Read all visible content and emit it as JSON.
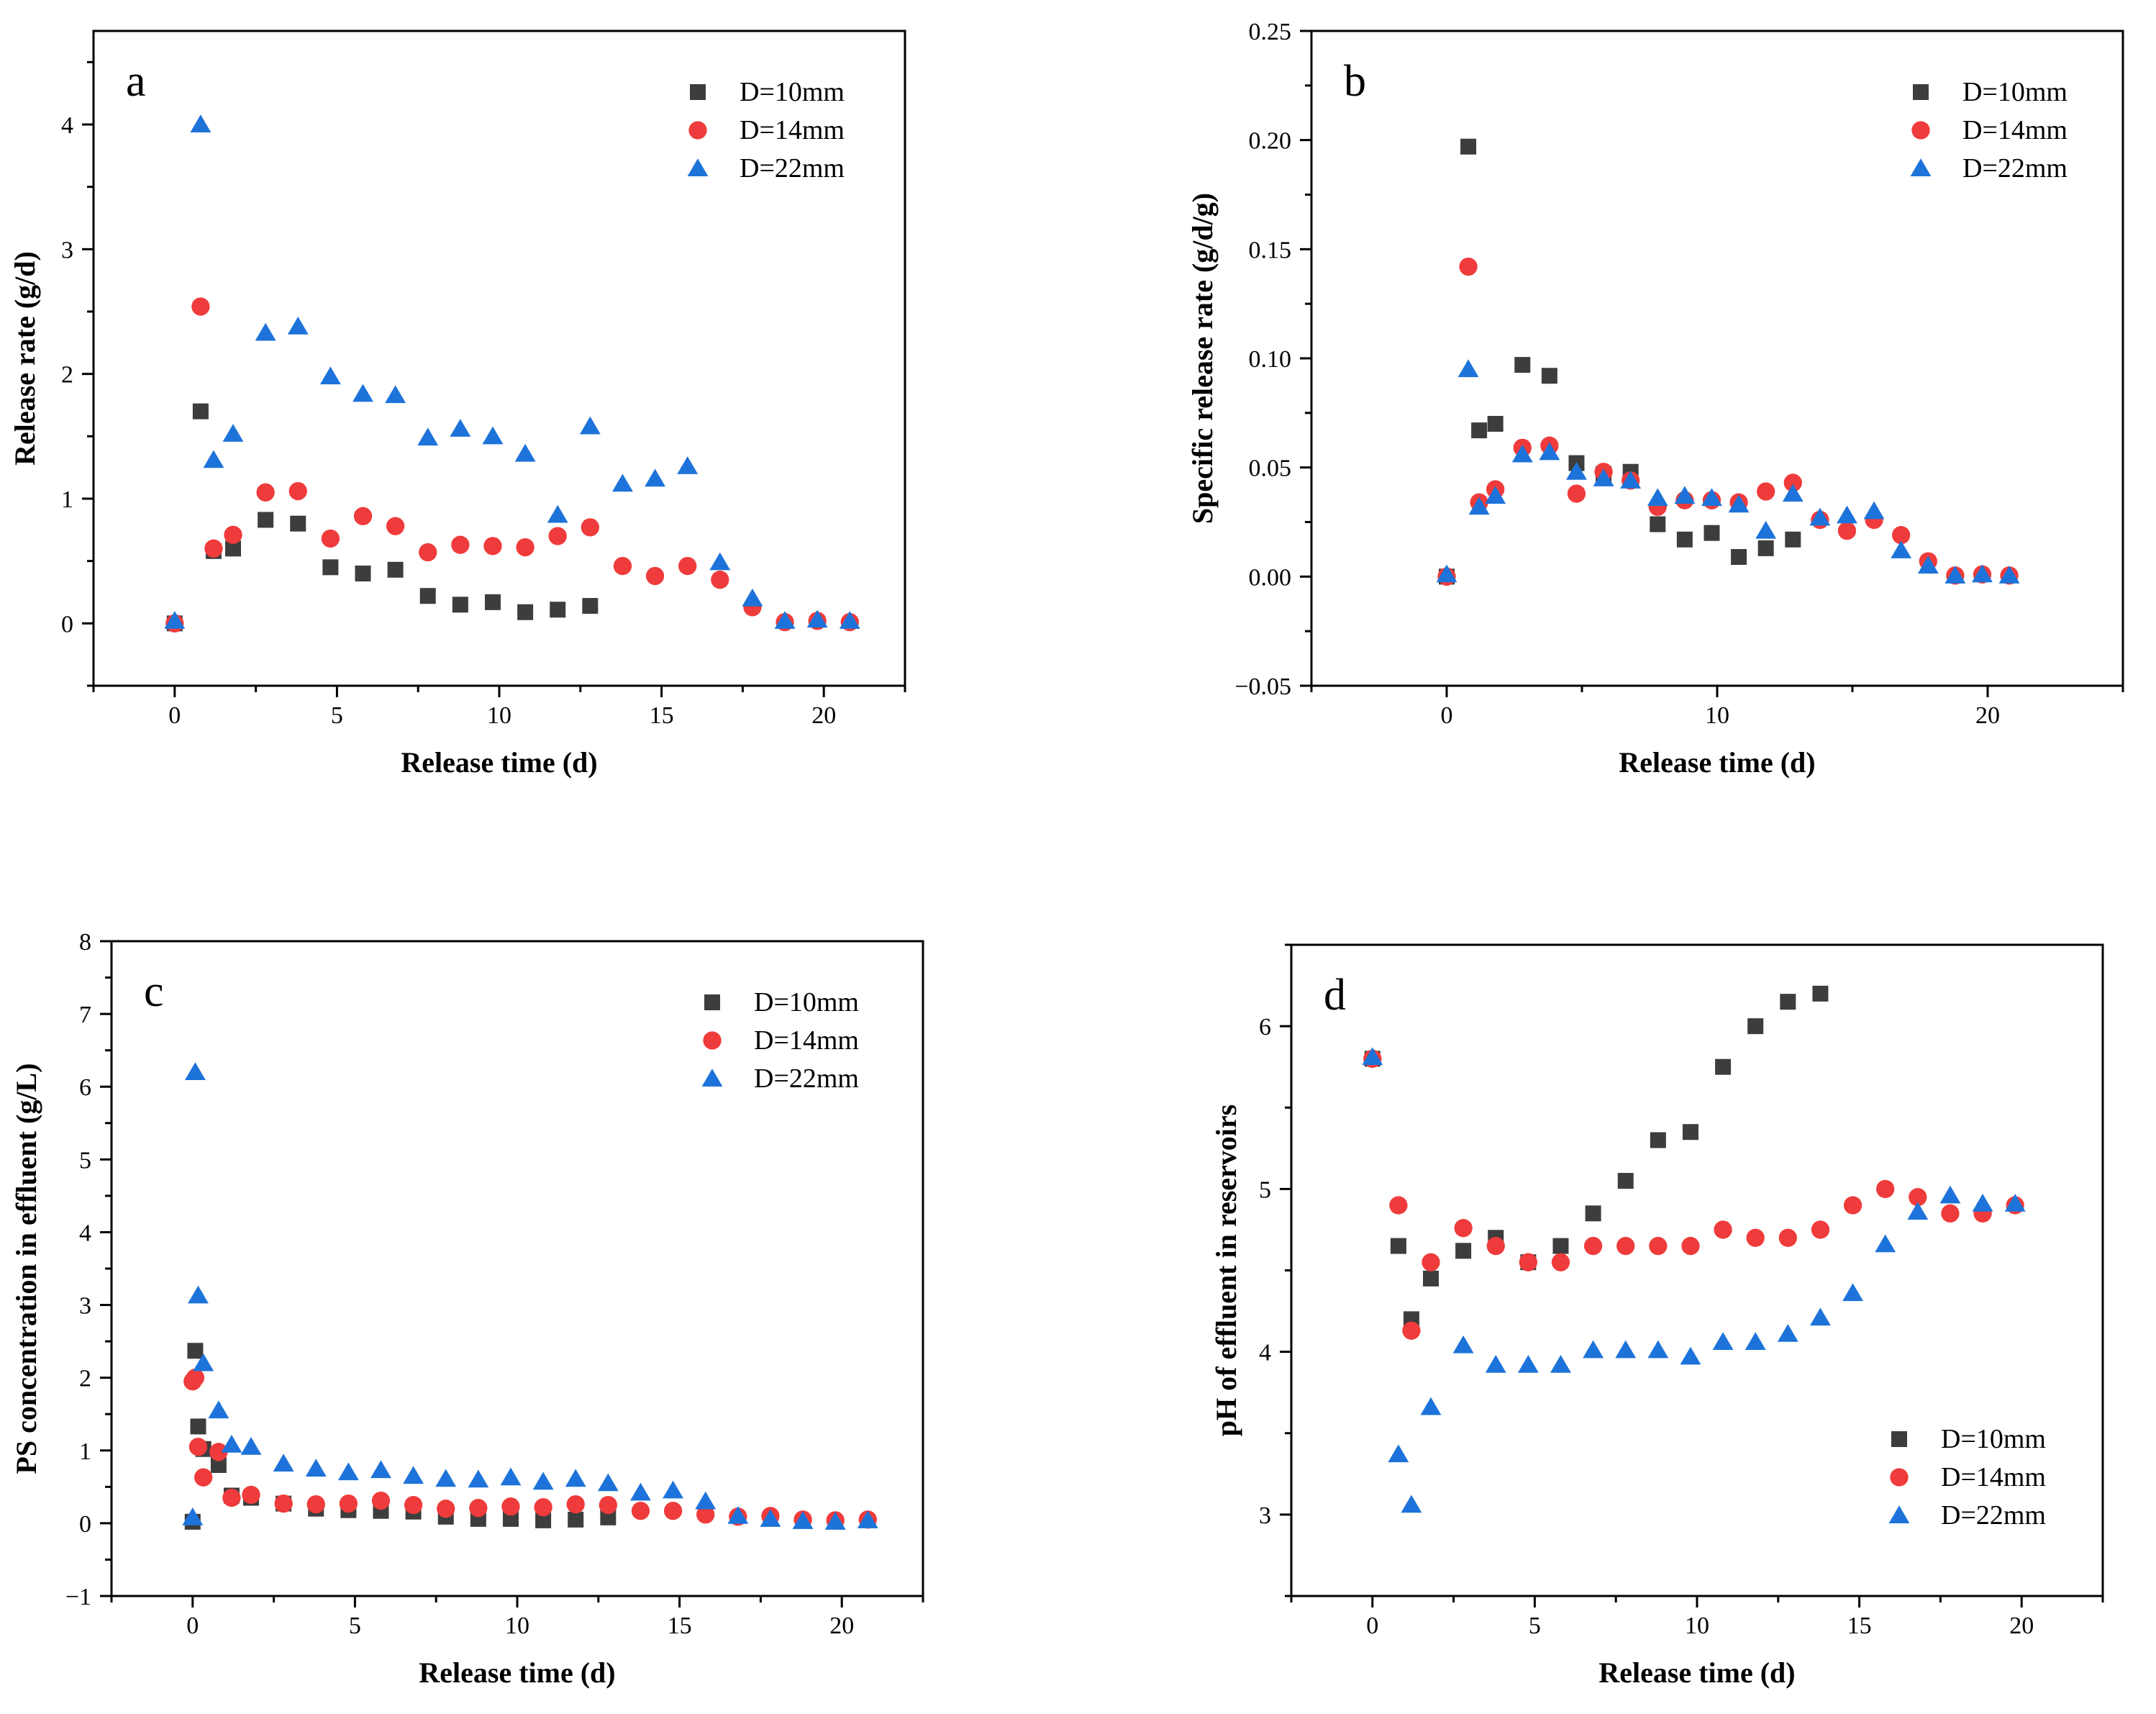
{
  "colors": {
    "D10": "#3d3d3d",
    "D14": "#ef3b3b",
    "D22": "#1d73d9"
  },
  "chart_data": [
    {
      "type": "scatter",
      "panel_label": "a",
      "xlabel": "Release time (d)",
      "ylabel": "Release rate (g/d)",
      "xlim": [
        -2.5,
        22.5
      ],
      "ylim": [
        -0.5,
        4.75
      ],
      "xticks": [
        0,
        5,
        10,
        15,
        20
      ],
      "yticks": [
        0,
        1,
        2,
        3,
        4
      ],
      "ytick_labels": [
        "0",
        "1",
        "2",
        "3",
        "4"
      ],
      "legend_position": "top-right",
      "series": [
        {
          "name": "D=10mm",
          "marker": "square",
          "color_key": "D10",
          "x": [
            0,
            0.8,
            1.2,
            1.8,
            2.8,
            3.8,
            4.8,
            5.8,
            6.8,
            7.8,
            8.8,
            9.8,
            10.8,
            11.8,
            12.8
          ],
          "y": [
            0,
            1.7,
            0.58,
            0.6,
            0.83,
            0.8,
            0.45,
            0.4,
            0.43,
            0.22,
            0.15,
            0.17,
            0.09,
            0.11,
            0.14
          ]
        },
        {
          "name": "D=14mm",
          "marker": "circle",
          "color_key": "D14",
          "x": [
            0,
            0.8,
            1.2,
            1.8,
            2.8,
            3.8,
            4.8,
            5.8,
            6.8,
            7.8,
            8.8,
            9.8,
            10.8,
            11.8,
            12.8,
            13.8,
            14.8,
            15.8,
            16.8,
            17.8,
            18.8,
            19.8,
            20.8
          ],
          "y": [
            0,
            2.54,
            0.6,
            0.71,
            1.05,
            1.06,
            0.68,
            0.86,
            0.78,
            0.57,
            0.63,
            0.62,
            0.61,
            0.7,
            0.77,
            0.46,
            0.38,
            0.46,
            0.35,
            0.13,
            0.01,
            0.02,
            0.01
          ]
        },
        {
          "name": "D=22mm",
          "marker": "triangle",
          "color_key": "D22",
          "x": [
            0,
            0.8,
            1.2,
            1.8,
            2.8,
            3.8,
            4.8,
            5.8,
            6.8,
            7.8,
            8.8,
            9.8,
            10.8,
            11.8,
            12.8,
            13.8,
            14.8,
            15.8,
            16.8,
            17.8,
            18.8,
            19.8,
            20.8
          ],
          "y": [
            0.02,
            4.0,
            1.31,
            1.52,
            2.33,
            2.38,
            1.98,
            1.84,
            1.83,
            1.49,
            1.56,
            1.5,
            1.36,
            0.87,
            1.58,
            1.12,
            1.16,
            1.26,
            0.49,
            0.2,
            0.02,
            0.03,
            0.02
          ]
        }
      ]
    },
    {
      "type": "scatter",
      "panel_label": "b",
      "xlabel": "Release time (d)",
      "ylabel": "Specific release rate (g/d/g)",
      "xlim": [
        -5,
        25
      ],
      "ylim": [
        -0.05,
        0.25
      ],
      "xticks": [
        0,
        10,
        20
      ],
      "yticks": [
        -0.05,
        0,
        0.05,
        0.1,
        0.15,
        0.2,
        0.25
      ],
      "ytick_labels": [
        "−0.05",
        "0.00",
        "0.05",
        "0.10",
        "0.15",
        "0.20",
        "0.25"
      ],
      "legend_position": "top-right",
      "series": [
        {
          "name": "D=10mm",
          "marker": "square",
          "color_key": "D10",
          "x": [
            0,
            0.8,
            1.2,
            1.8,
            2.8,
            3.8,
            4.8,
            5.8,
            6.8,
            7.8,
            8.8,
            9.8,
            10.8,
            11.8,
            12.8
          ],
          "y": [
            0,
            0.197,
            0.067,
            0.07,
            0.097,
            0.092,
            0.052,
            0.047,
            0.048,
            0.024,
            0.017,
            0.02,
            0.009,
            0.013,
            0.017
          ]
        },
        {
          "name": "D=14mm",
          "marker": "circle",
          "color_key": "D14",
          "x": [
            0,
            0.8,
            1.2,
            1.8,
            2.8,
            3.8,
            4.8,
            5.8,
            6.8,
            7.8,
            8.8,
            9.8,
            10.8,
            11.8,
            12.8,
            13.8,
            14.8,
            15.8,
            16.8,
            17.8,
            18.8,
            19.8,
            20.8
          ],
          "y": [
            0,
            0.142,
            0.034,
            0.04,
            0.059,
            0.06,
            0.038,
            0.048,
            0.044,
            0.032,
            0.035,
            0.035,
            0.034,
            0.039,
            0.043,
            0.026,
            0.021,
            0.026,
            0.019,
            0.007,
            0.0005,
            0.001,
            0.0005
          ]
        },
        {
          "name": "D=22mm",
          "marker": "triangle",
          "color_key": "D22",
          "x": [
            0,
            0.8,
            1.2,
            1.8,
            2.8,
            3.8,
            4.8,
            5.8,
            6.8,
            7.8,
            8.8,
            9.8,
            10.8,
            11.8,
            12.8,
            13.8,
            14.8,
            15.8,
            16.8,
            17.8,
            18.8,
            19.8,
            20.8
          ],
          "y": [
            0.001,
            0.095,
            0.032,
            0.037,
            0.056,
            0.057,
            0.048,
            0.045,
            0.044,
            0.036,
            0.037,
            0.036,
            0.033,
            0.021,
            0.038,
            0.027,
            0.028,
            0.03,
            0.012,
            0.005,
            0.0005,
            0.001,
            0.0005
          ]
        }
      ]
    },
    {
      "type": "scatter",
      "panel_label": "c",
      "xlabel": "Release time (d)",
      "ylabel": "PS concentration in effluent (g/L)",
      "xlim": [
        -2.5,
        22.5
      ],
      "ylim": [
        -1,
        8
      ],
      "xticks": [
        0,
        5,
        10,
        15,
        20
      ],
      "yticks": [
        -1,
        0,
        1,
        2,
        3,
        4,
        5,
        6,
        7,
        8
      ],
      "ytick_labels": [
        "−1",
        "0",
        "1",
        "2",
        "3",
        "4",
        "5",
        "6",
        "7",
        "8"
      ],
      "legend_position": "top-right",
      "series": [
        {
          "name": "D=10mm",
          "marker": "square",
          "color_key": "D10",
          "x": [
            0,
            0.08,
            0.17,
            0.33,
            0.8,
            1.2,
            1.8,
            2.8,
            3.8,
            4.8,
            5.8,
            6.8,
            7.8,
            8.8,
            9.8,
            10.8,
            11.8,
            12.8
          ],
          "y": [
            0.02,
            2.37,
            1.33,
            1.02,
            0.8,
            0.38,
            0.35,
            0.27,
            0.2,
            0.18,
            0.17,
            0.16,
            0.09,
            0.06,
            0.06,
            0.04,
            0.05,
            0.08
          ]
        },
        {
          "name": "D=14mm",
          "marker": "circle",
          "color_key": "D14",
          "x": [
            0,
            0.08,
            0.17,
            0.33,
            0.8,
            1.2,
            1.8,
            2.8,
            3.8,
            4.8,
            5.8,
            6.8,
            7.8,
            8.8,
            9.8,
            10.8,
            11.8,
            12.8,
            13.8,
            14.8,
            15.8,
            16.8,
            17.8,
            18.8,
            19.8,
            20.8
          ],
          "y": [
            1.95,
            2.0,
            1.05,
            0.63,
            0.98,
            0.35,
            0.39,
            0.27,
            0.26,
            0.27,
            0.31,
            0.25,
            0.2,
            0.21,
            0.23,
            0.22,
            0.26,
            0.25,
            0.17,
            0.17,
            0.12,
            0.09,
            0.1,
            0.05,
            0.04,
            0.05
          ]
        },
        {
          "name": "D=22mm",
          "marker": "triangle",
          "color_key": "D22",
          "x": [
            0,
            0.08,
            0.17,
            0.33,
            0.8,
            1.2,
            1.8,
            2.8,
            3.8,
            4.8,
            5.8,
            6.8,
            7.8,
            8.8,
            9.8,
            10.8,
            11.8,
            12.8,
            13.8,
            14.8,
            15.8,
            16.8,
            17.8,
            18.8,
            19.8,
            20.8
          ],
          "y": [
            0.08,
            6.2,
            3.13,
            2.2,
            1.55,
            1.08,
            1.05,
            0.82,
            0.75,
            0.7,
            0.73,
            0.65,
            0.61,
            0.6,
            0.63,
            0.57,
            0.61,
            0.55,
            0.42,
            0.45,
            0.3,
            0.1,
            0.06,
            0.03,
            0.02,
            0.04
          ]
        }
      ]
    },
    {
      "type": "scatter",
      "panel_label": "d",
      "xlabel": "Release time (d)",
      "ylabel": "pH of effluent in reservoirs",
      "xlim": [
        -2.5,
        22.5
      ],
      "ylim": [
        2.5,
        6.5
      ],
      "xticks": [
        0,
        5,
        10,
        15,
        20
      ],
      "yticks": [
        3,
        4,
        5,
        6
      ],
      "ytick_labels": [
        "3",
        "4",
        "5",
        "6"
      ],
      "legend_position": "bottom-right",
      "series": [
        {
          "name": "D=10mm",
          "marker": "square",
          "color_key": "D10",
          "x": [
            0,
            0.8,
            1.2,
            1.8,
            2.8,
            3.8,
            4.8,
            5.8,
            6.8,
            7.8,
            8.8,
            9.8,
            10.8,
            11.8,
            12.8,
            13.8
          ],
          "y": [
            5.8,
            4.65,
            4.2,
            4.45,
            4.62,
            4.7,
            4.55,
            4.65,
            4.85,
            5.05,
            5.3,
            5.35,
            5.75,
            6.0,
            6.15,
            6.2
          ]
        },
        {
          "name": "D=14mm",
          "marker": "circle",
          "color_key": "D14",
          "x": [
            0,
            0.8,
            1.2,
            1.8,
            2.8,
            3.8,
            4.8,
            5.8,
            6.8,
            7.8,
            8.8,
            9.8,
            10.8,
            11.8,
            12.8,
            13.8,
            14.8,
            15.8,
            16.8,
            17.8,
            18.8,
            19.8
          ],
          "y": [
            5.8,
            4.9,
            4.13,
            4.55,
            4.76,
            4.65,
            4.55,
            4.55,
            4.65,
            4.65,
            4.65,
            4.65,
            4.75,
            4.7,
            4.7,
            4.75,
            4.9,
            5.0,
            4.95,
            4.85,
            4.85,
            4.9
          ]
        },
        {
          "name": "D=22mm",
          "marker": "triangle",
          "color_key": "D22",
          "x": [
            0,
            0.8,
            1.2,
            1.8,
            2.8,
            3.8,
            4.8,
            5.8,
            6.8,
            7.8,
            8.8,
            9.8,
            10.8,
            11.8,
            12.8,
            13.8,
            14.8,
            15.8,
            16.8,
            17.8,
            18.8,
            19.8
          ],
          "y": [
            5.81,
            3.37,
            3.06,
            3.66,
            4.04,
            3.92,
            3.92,
            3.92,
            4.01,
            4.01,
            4.01,
            3.97,
            4.06,
            4.06,
            4.11,
            4.21,
            4.36,
            4.66,
            4.86,
            4.96,
            4.91,
            4.91
          ]
        }
      ]
    }
  ]
}
